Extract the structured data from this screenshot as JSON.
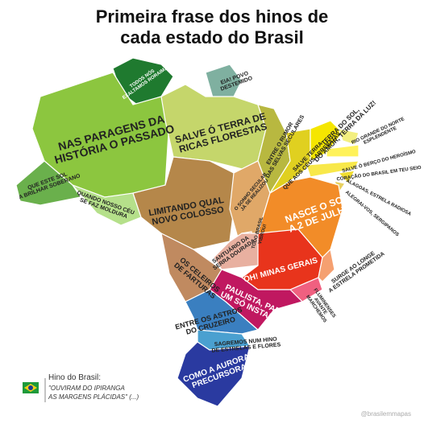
{
  "title": [
    "Primeira frase dos hinos de",
    "cada estado do Brasil"
  ],
  "states": [
    {
      "lines": [
        "TODOS NÓS",
        "EXALTAMOS RORAIMA"
      ],
      "color": "#1f7a2f"
    },
    {
      "lines": [
        "EIA! POVO",
        "DESTEMIDO"
      ],
      "color": "#7fb0a0"
    },
    {
      "lines": [
        "NAS PARAGENS DA",
        "HISTÓRIA O PASSADO"
      ],
      "color": "#8cc63f"
    },
    {
      "lines": [
        "SALVE Ó TERRA DE",
        "RICAS FLORESTAS"
      ],
      "color": "#c5d66b"
    },
    {
      "lines": [
        "ENTRE O RUMOR",
        "DAS SELVAS SECULARES"
      ],
      "color": "#b8b840"
    },
    {
      "lines": [
        "SALVE TERRA",
        "QUE AOS CÉUS ARREBATAS"
      ],
      "color": "#e0d020"
    },
    {
      "lines": [
        "TERRA DO SOL,",
        "DO AMOR, TERRA DA LUZ!"
      ],
      "color": "#f5e600"
    },
    {
      "lines": [
        "RIO GRANDE DO NORTE",
        "ESPLENDENTE"
      ],
      "color": "#f3ef80"
    },
    {
      "lines": [
        "SALVE Ó BERÇO DO HEROÍSMO"
      ],
      "color": "#fff25a"
    },
    {
      "lines": [
        "CORAÇÃO DO BRASIL EM TEU SEIO"
      ],
      "color": "#f8e84a"
    },
    {
      "lines": [
        "ALAGOAS, ESTRELA RADIOSA"
      ],
      "color": "#f0dc30"
    },
    {
      "lines": [
        "ALEGRAI-VOS, SERGIPANOS"
      ],
      "color": "#e8d060"
    },
    {
      "lines": [
        "QUE ESTE SOL",
        "A BRILHAR SOBERANO"
      ],
      "color": "#6ab04c"
    },
    {
      "lines": [
        "QUANDO NOSSO CÉU",
        "SE FAZ MOLDURA"
      ],
      "color": "#b5e08a"
    },
    {
      "lines": [
        "LIMITANDO QUAL",
        "NOVO COLOSSO"
      ],
      "color": "#b5874a"
    },
    {
      "lines": [
        "O SONHO SECULAR",
        "JÁ SE REALIZOU"
      ],
      "color": "#e0a868"
    },
    {
      "lines": [
        "NASCE O SOL",
        "A 2 DE JULHO"
      ],
      "color": "#f28c28"
    },
    {
      "lines": [
        "TODO BRASIL",
        "VIBROU!"
      ],
      "color": "#e69070"
    },
    {
      "lines": [
        "SANTUÁRIO DA",
        "SERRA DOURADA"
      ],
      "color": "#e8b0a0"
    },
    {
      "lines": [
        "OS CELEIROS",
        "DE FARTURAS"
      ],
      "color": "#c08a60"
    },
    {
      "lines": [
        "OH! MINAS GERAIS"
      ],
      "color": "#e8341c"
    },
    {
      "lines": [
        "SURGE AO LONGE",
        "A ESTRELA PROMETIDA"
      ],
      "color": "#f5a070"
    },
    {
      "lines": [
        "FLUMINENSES",
        "AVANTE",
        "MARCHEMOS"
      ],
      "color": "#f06080"
    },
    {
      "lines": [
        "PAULISTA, PARA",
        "UM SÓ INSTANTE"
      ],
      "color": "#c01860"
    },
    {
      "lines": [
        "ENTRE OS ASTROS",
        "DO CRUZEIRO"
      ],
      "color": "#3a7fc0"
    },
    {
      "lines": [
        "SAGREMOS NUM HINO",
        "DE ESTRELAS E FLORES"
      ],
      "color": "#4aa0d0"
    },
    {
      "lines": [
        "COMO A AURORA",
        "PRECURSORA"
      ],
      "color": "#2a3aa0"
    }
  ],
  "legend": {
    "label": "Hino do Brasil:",
    "lines": [
      "\"OUVIRAM DO IPIRANGA",
      "AS MARGENS PLÁCIDAS\" (...)"
    ]
  },
  "watermark": "@brasilemmapas"
}
